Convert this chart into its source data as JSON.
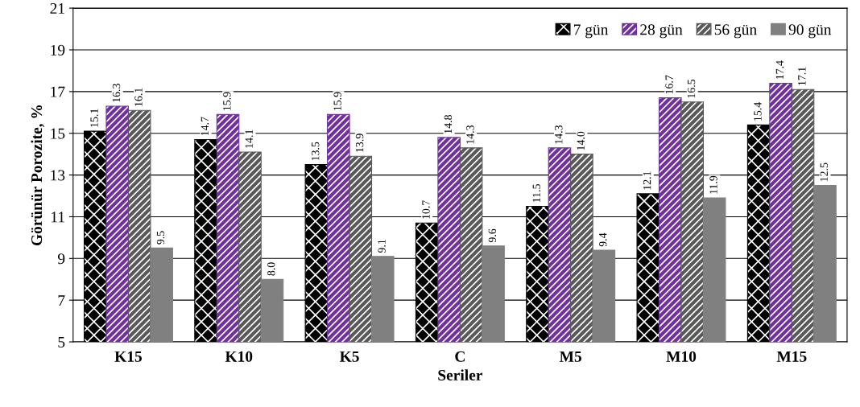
{
  "chart_data": {
    "type": "bar",
    "xlabel": "Seriler",
    "ylabel": "Görünür Porozite, %",
    "categories": [
      "K15",
      "K10",
      "K5",
      "C",
      "M5",
      "M10",
      "M15"
    ],
    "series": [
      {
        "name": "7 gün",
        "color": "#000000",
        "values": [
          15.1,
          14.7,
          13.5,
          10.7,
          11.5,
          12.1,
          15.4
        ],
        "value_labels": [
          "15.1",
          "14.7",
          "13.5",
          "10.7",
          "11.5",
          "12.1",
          "15.4"
        ]
      },
      {
        "name": "28 gün",
        "color": "#7030a0",
        "values": [
          16.3,
          15.9,
          15.9,
          14.8,
          14.3,
          16.7,
          17.4
        ],
        "value_labels": [
          "16.3",
          "15.9",
          "15.9",
          "14.8",
          "14.3",
          "16.7",
          "17.4"
        ]
      },
      {
        "name": "56 gün",
        "color": "#595959",
        "values": [
          16.1,
          14.1,
          13.9,
          14.3,
          14.0,
          16.5,
          17.1
        ],
        "value_labels": [
          "16.1",
          "14.1",
          "13.9",
          "14.3",
          "14.0",
          "16.5",
          "17.1"
        ]
      },
      {
        "name": "90 gün",
        "color": "#808080",
        "values": [
          9.5,
          8.0,
          9.1,
          9.6,
          9.4,
          11.9,
          12.5
        ],
        "value_labels": [
          "9.5",
          "8.0",
          "9.1",
          "9.6",
          "9.4",
          "11.9",
          "12.5"
        ]
      }
    ],
    "ylim": [
      5,
      21
    ],
    "yticks": [
      5,
      7,
      9,
      11,
      13,
      15,
      17,
      19,
      21
    ],
    "grid": "y",
    "legend": "top right"
  }
}
